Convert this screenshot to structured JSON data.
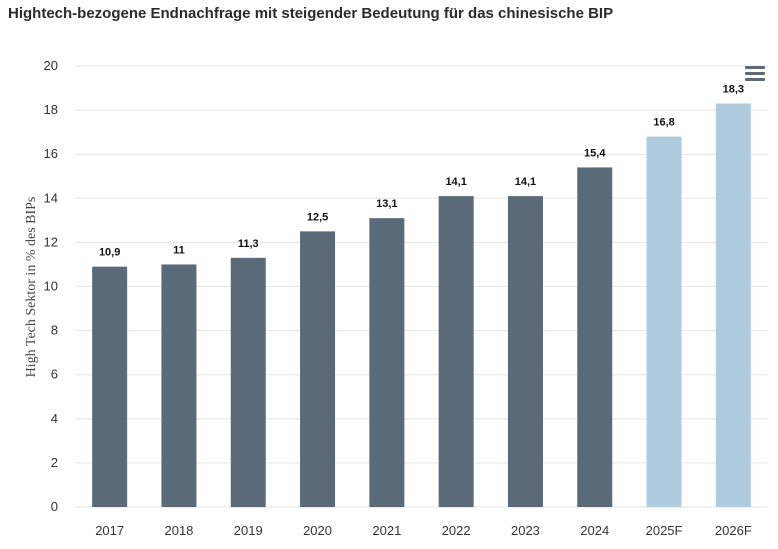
{
  "chart_data": {
    "type": "bar",
    "title": "Hightech-bezogene Endnachfrage mit steigender Bedeutung für das chinesische BIP",
    "xlabel": "",
    "ylabel": "High Tech Sektor in % des BIPs",
    "ylim": [
      0,
      20
    ],
    "yticks": [
      "0",
      "2",
      "4",
      "6",
      "8",
      "10",
      "12",
      "14",
      "16",
      "18",
      "20"
    ],
    "grid": true,
    "categories": [
      "2017",
      "2018",
      "2019",
      "2020",
      "2021",
      "2022",
      "2023",
      "2024",
      "2025F",
      "2026F"
    ],
    "values": [
      10.9,
      11,
      11.3,
      12.5,
      13.1,
      14.1,
      14.1,
      15.4,
      16.8,
      18.3
    ],
    "value_labels": [
      "10,9",
      "11",
      "11,3",
      "12,5",
      "13,1",
      "14,1",
      "14,1",
      "15,4",
      "16,8",
      "18,3"
    ],
    "forecast": [
      false,
      false,
      false,
      false,
      false,
      false,
      false,
      false,
      true,
      true
    ],
    "colors": {
      "actual": "#5a6a78",
      "forecast": "#afcbde",
      "grid": "#e6e6e6"
    }
  },
  "menu": {
    "icon": "hamburger-menu-icon"
  }
}
